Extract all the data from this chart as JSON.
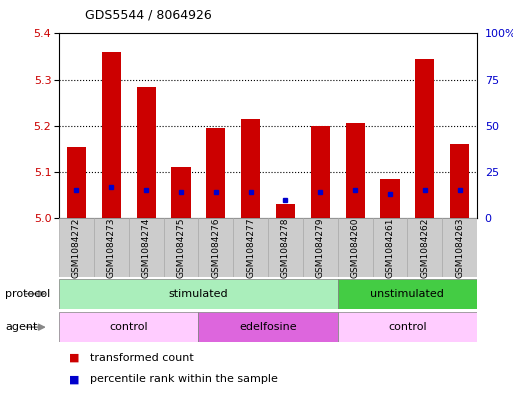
{
  "title": "GDS5544 / 8064926",
  "samples": [
    "GSM1084272",
    "GSM1084273",
    "GSM1084274",
    "GSM1084275",
    "GSM1084276",
    "GSM1084277",
    "GSM1084278",
    "GSM1084279",
    "GSM1084260",
    "GSM1084261",
    "GSM1084262",
    "GSM1084263"
  ],
  "transformed_count": [
    5.155,
    5.36,
    5.285,
    5.11,
    5.195,
    5.215,
    5.03,
    5.2,
    5.205,
    5.085,
    5.345,
    5.16
  ],
  "percentile_rank": [
    15,
    17,
    15,
    14,
    14,
    14,
    10,
    14,
    15,
    13,
    15,
    15
  ],
  "ylim_left": [
    5.0,
    5.4
  ],
  "ylim_right": [
    0,
    100
  ],
  "yticks_left": [
    5.0,
    5.1,
    5.2,
    5.3,
    5.4
  ],
  "yticks_right": [
    0,
    25,
    50,
    75,
    100
  ],
  "ytick_labels_right": [
    "0",
    "25",
    "50",
    "75",
    "100%"
  ],
  "bar_color": "#cc0000",
  "blue_color": "#0000cc",
  "bar_base": 5.0,
  "dotted_lines": [
    5.1,
    5.2,
    5.3
  ],
  "protocol_groups": [
    {
      "label": "stimulated",
      "start": 0,
      "end": 7,
      "color": "#aaeebb"
    },
    {
      "label": "unstimulated",
      "start": 8,
      "end": 11,
      "color": "#44cc44"
    }
  ],
  "agent_groups": [
    {
      "label": "control",
      "start": 0,
      "end": 3,
      "color": "#ffccff"
    },
    {
      "label": "edelfosine",
      "start": 4,
      "end": 7,
      "color": "#dd66dd"
    },
    {
      "label": "control",
      "start": 8,
      "end": 11,
      "color": "#ffccff"
    }
  ],
  "protocol_label": "protocol",
  "agent_label": "agent",
  "legend_items": [
    {
      "label": "transformed count",
      "color": "#cc0000"
    },
    {
      "label": "percentile rank within the sample",
      "color": "#0000cc"
    }
  ],
  "tick_color_left": "#cc0000",
  "tick_color_right": "#0000cc",
  "sample_box_color": "#cccccc",
  "arrow_color": "#888888"
}
